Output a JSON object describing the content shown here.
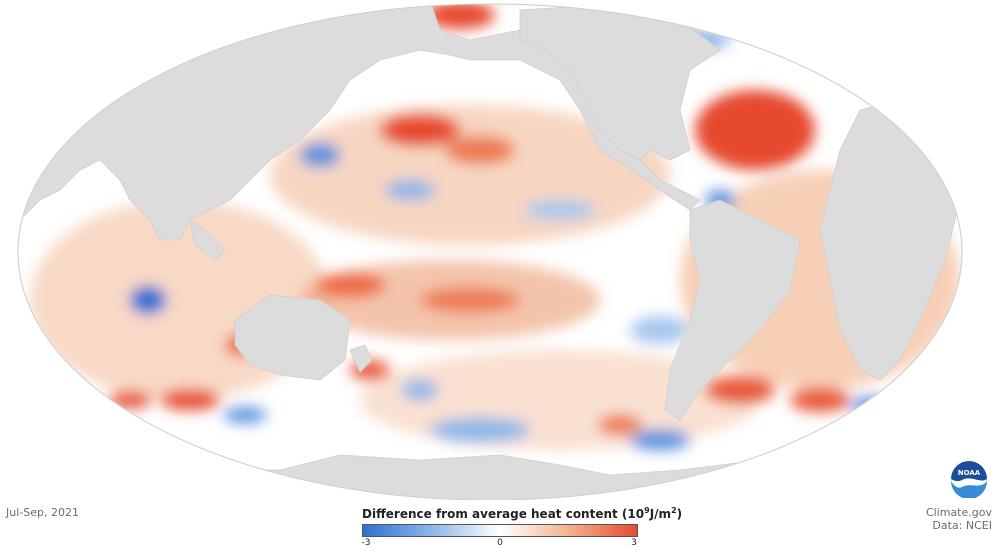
{
  "map": {
    "projection": "equal-area world",
    "variable": "ocean heat content anomaly",
    "land_color": "#dcdcdc",
    "ocean_neutral_color": "#ffffff"
  },
  "date_label": "Jul-Sep, 2021",
  "legend": {
    "title_main": "Difference from average heat content (",
    "title_unit_base": "10",
    "title_unit_exp": "9",
    "title_unit_mid": "J/m",
    "title_unit_exp2": "2",
    "title_close": ")",
    "min": -3,
    "mid": 0,
    "max": 3,
    "tick_min_label": "-3",
    "tick_mid_label": "0",
    "tick_max_label": "3",
    "colors": [
      "#2e6fd4",
      "#8db6e8",
      "#ffffff",
      "#f3b38f",
      "#e64a2e"
    ]
  },
  "credits": {
    "line1": "Climate.gov",
    "line2": "Data: NCEI"
  },
  "logo": {
    "text": "NOAA",
    "icon": "noaa-logo-icon"
  }
}
